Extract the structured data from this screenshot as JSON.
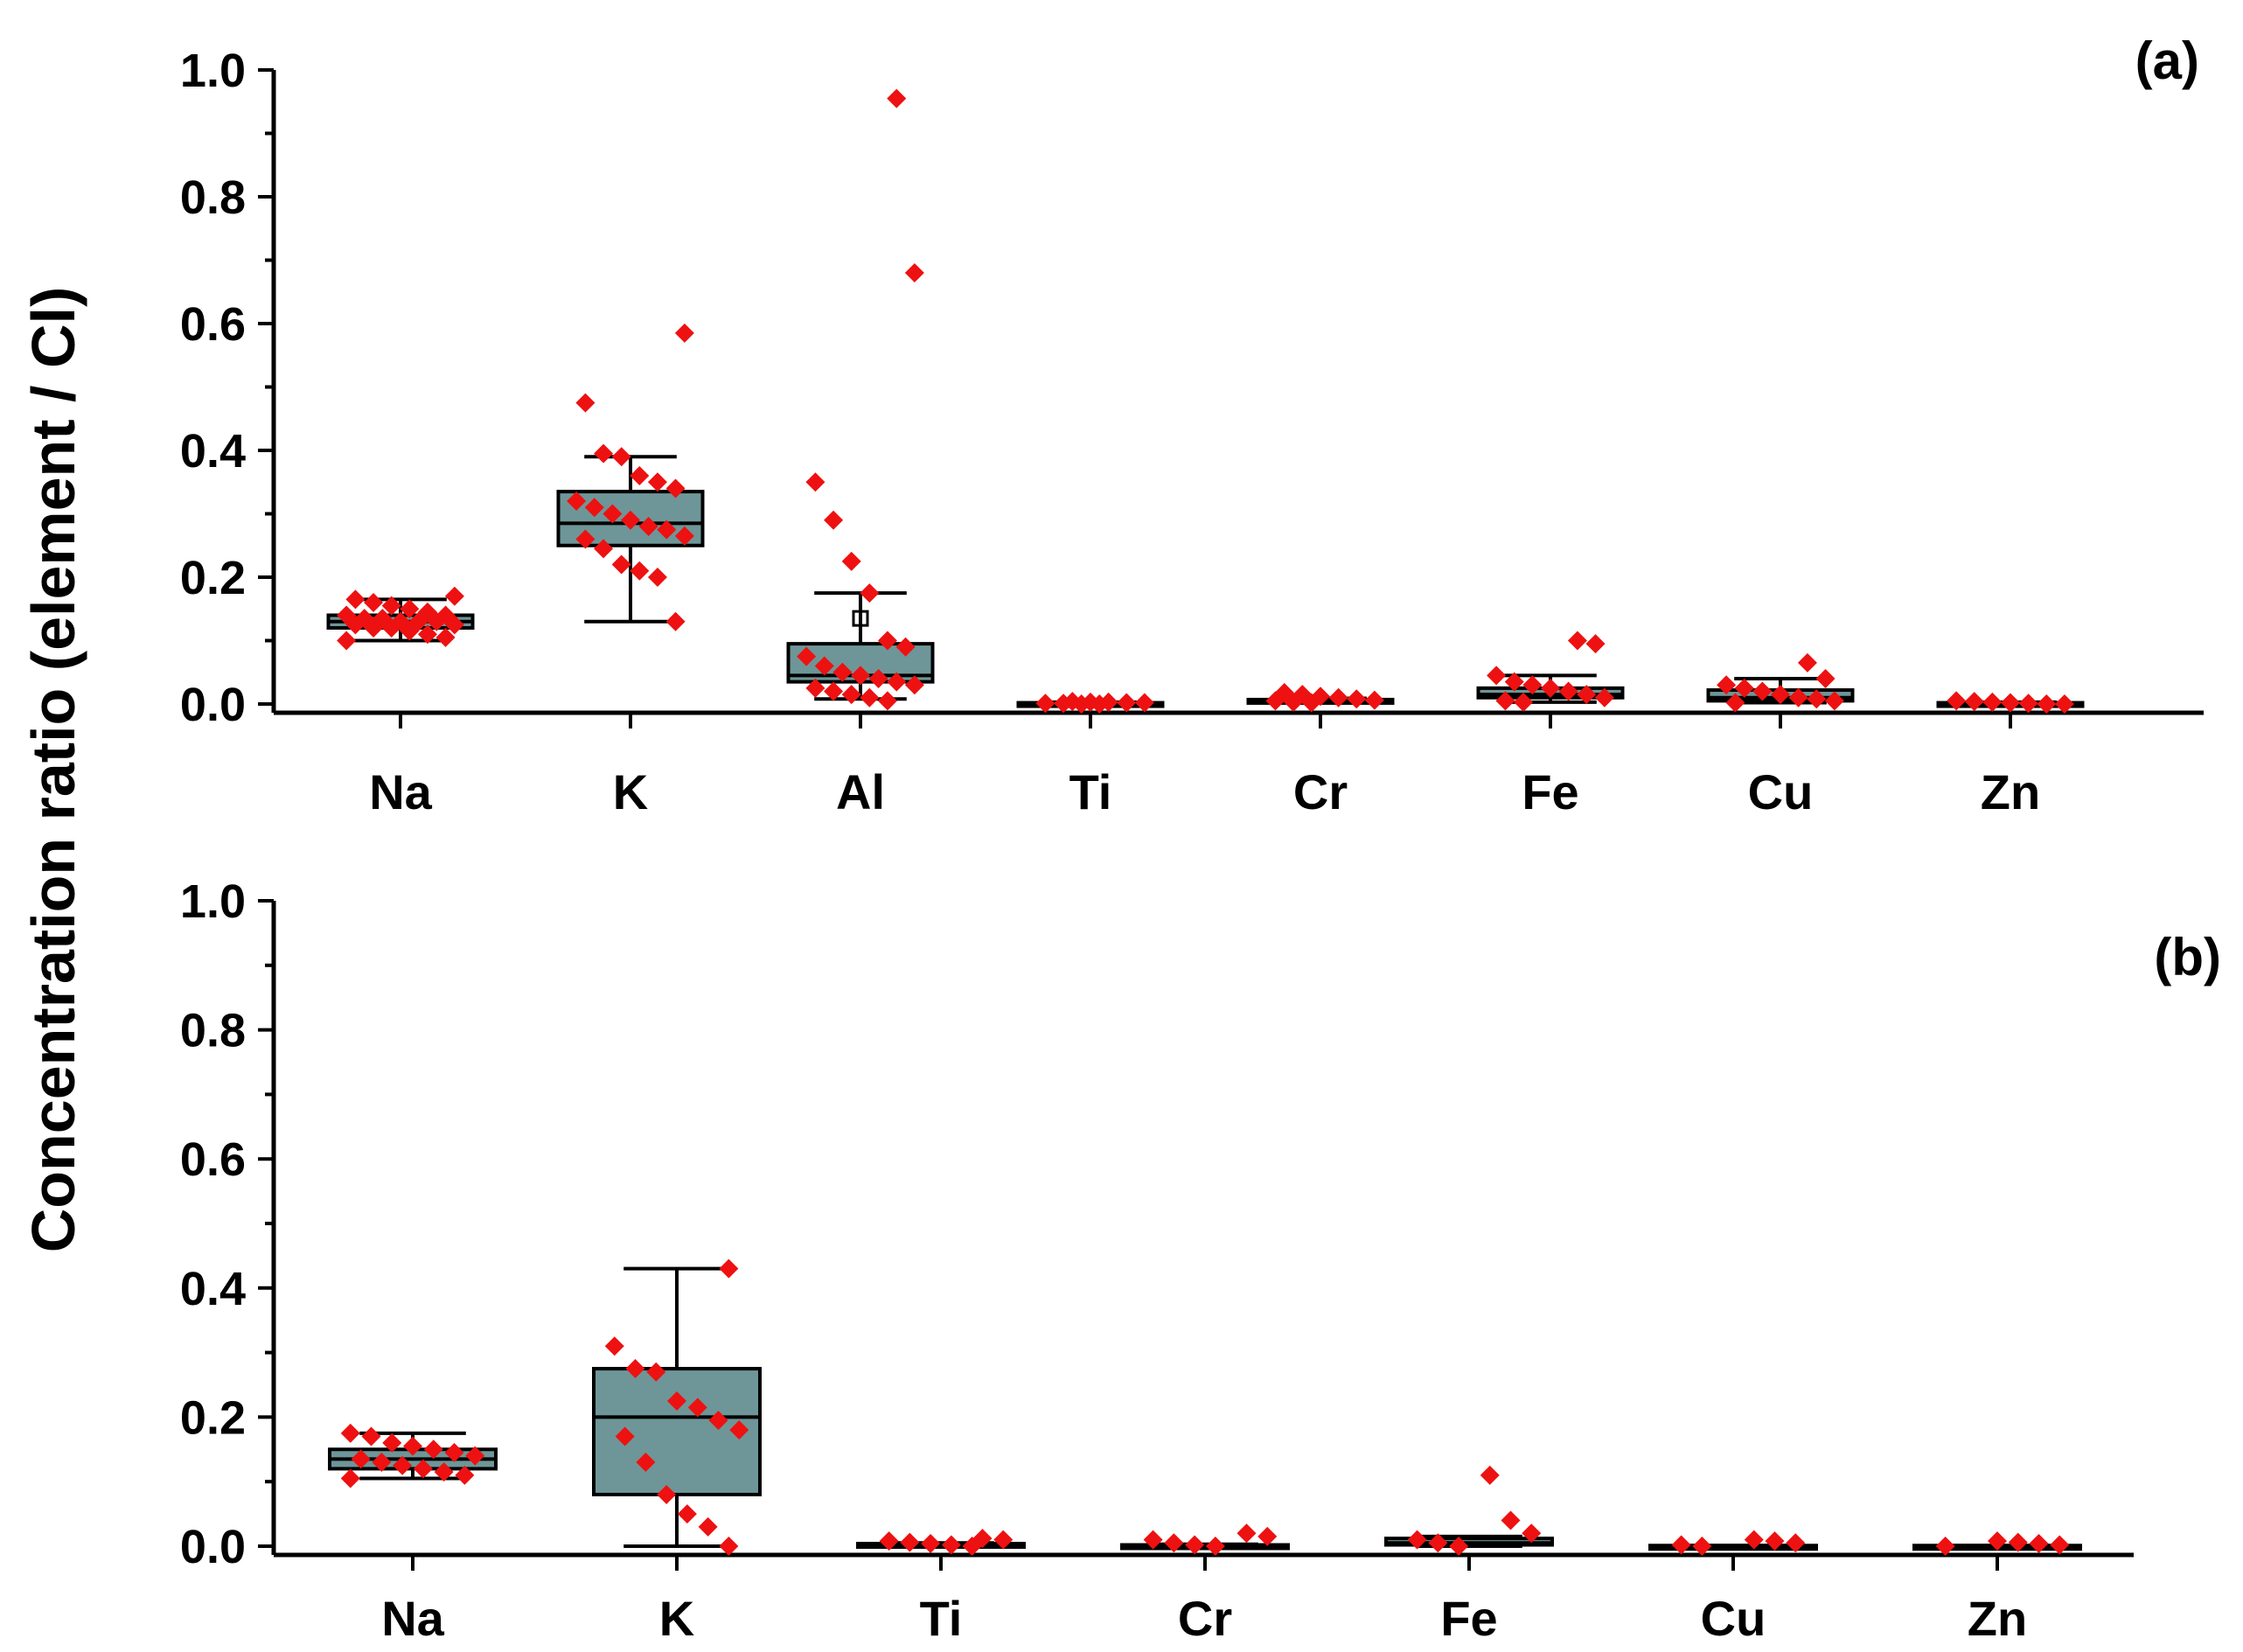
{
  "figure": {
    "ylabel": "Concentration ratio (element / Cl)",
    "box_color": "#6e9698",
    "point_color": "#ee1111"
  },
  "chart_data": [
    {
      "type": "box",
      "panel_label": "(a)",
      "ylim": [
        0,
        1.0
      ],
      "yticks": [
        "0.0",
        "0.2",
        "0.4",
        "0.6",
        "0.8",
        "1.0"
      ],
      "categories": [
        "Na",
        "K",
        "Al",
        "Ti",
        "Cr",
        "Fe",
        "Cu",
        "Zn"
      ],
      "boxes": [
        {
          "q1": 0.12,
          "median": 0.13,
          "q3": 0.14,
          "whisker_low": 0.1,
          "whisker_high": 0.165,
          "mean": null
        },
        {
          "q1": 0.25,
          "median": 0.285,
          "q3": 0.335,
          "whisker_low": 0.13,
          "whisker_high": 0.39,
          "mean": null
        },
        {
          "q1": 0.035,
          "median": 0.045,
          "q3": 0.095,
          "whisker_low": 0.008,
          "whisker_high": 0.175,
          "mean": 0.135
        },
        {
          "q1": 0.0,
          "median": 0.001,
          "q3": 0.002,
          "whisker_low": 0.0,
          "whisker_high": 0.003,
          "mean": null
        },
        {
          "q1": 0.003,
          "median": 0.005,
          "q3": 0.007,
          "whisker_low": 0.002,
          "whisker_high": 0.009,
          "mean": null
        },
        {
          "q1": 0.01,
          "median": 0.015,
          "q3": 0.025,
          "whisker_low": 0.003,
          "whisker_high": 0.045,
          "mean": null
        },
        {
          "q1": 0.005,
          "median": 0.01,
          "q3": 0.022,
          "whisker_low": 0.002,
          "whisker_high": 0.04,
          "mean": null
        },
        {
          "q1": 0.0,
          "median": 0.001,
          "q3": 0.002,
          "whisker_low": 0.0,
          "whisker_high": 0.003,
          "mean": null
        }
      ],
      "points": [
        [
          0.1,
          0.105,
          0.11,
          0.115,
          0.12,
          0.12,
          0.125,
          0.125,
          0.13,
          0.13,
          0.13,
          0.135,
          0.135,
          0.14,
          0.14,
          0.145,
          0.15,
          0.155,
          0.16,
          0.165,
          0.17
        ],
        [
          0.13,
          0.2,
          0.21,
          0.22,
          0.245,
          0.26,
          0.265,
          0.275,
          0.28,
          0.29,
          0.3,
          0.31,
          0.32,
          0.34,
          0.35,
          0.36,
          0.39,
          0.395,
          0.475,
          0.585
        ],
        [
          0.005,
          0.01,
          0.015,
          0.02,
          0.025,
          0.03,
          0.035,
          0.04,
          0.045,
          0.05,
          0.06,
          0.075,
          0.09,
          0.1,
          0.175,
          0.225,
          0.29,
          0.35,
          0.68,
          0.955
        ],
        [
          0.0,
          0.0,
          0.001,
          0.001,
          0.002,
          0.002,
          0.003,
          0.003,
          0.004
        ],
        [
          0.002,
          0.003,
          0.005,
          0.006,
          0.008,
          0.01,
          0.012,
          0.015,
          0.018
        ],
        [
          0.003,
          0.005,
          0.01,
          0.015,
          0.02,
          0.025,
          0.03,
          0.035,
          0.045,
          0.095,
          0.1
        ],
        [
          0.002,
          0.005,
          0.008,
          0.01,
          0.015,
          0.02,
          0.025,
          0.03,
          0.04,
          0.065
        ],
        [
          0.0,
          0.0,
          0.001,
          0.002,
          0.003,
          0.004,
          0.005
        ]
      ]
    },
    {
      "type": "box",
      "panel_label": "(b)",
      "ylim": [
        0,
        1.0
      ],
      "yticks": [
        "0.0",
        "0.2",
        "0.4",
        "0.6",
        "0.8",
        "1.0"
      ],
      "categories": [
        "Na",
        "K",
        "Ti",
        "Cr",
        "Fe",
        "Cu",
        "Zn"
      ],
      "boxes": [
        {
          "q1": 0.12,
          "median": 0.135,
          "q3": 0.15,
          "whisker_low": 0.105,
          "whisker_high": 0.175,
          "mean": null
        },
        {
          "q1": 0.08,
          "median": 0.2,
          "q3": 0.275,
          "whisker_low": 0.0,
          "whisker_high": 0.43,
          "mean": null
        },
        {
          "q1": 0.0,
          "median": 0.002,
          "q3": 0.004,
          "whisker_low": 0.0,
          "whisker_high": 0.005,
          "mean": null
        },
        {
          "q1": 0.0,
          "median": 0.001,
          "q3": 0.002,
          "whisker_low": 0.0,
          "whisker_high": 0.003,
          "mean": null
        },
        {
          "q1": 0.002,
          "median": 0.005,
          "q3": 0.012,
          "whisker_low": 0.0,
          "whisker_high": 0.015,
          "mean": null
        },
        {
          "q1": 0.0,
          "median": 0.0,
          "q3": 0.001,
          "whisker_low": 0.0,
          "whisker_high": 0.001,
          "mean": null
        },
        {
          "q1": 0.0,
          "median": 0.0,
          "q3": 0.001,
          "whisker_low": 0.0,
          "whisker_high": 0.001,
          "mean": null
        }
      ],
      "points": [
        [
          0.105,
          0.11,
          0.115,
          0.12,
          0.125,
          0.13,
          0.135,
          0.14,
          0.145,
          0.15,
          0.155,
          0.16,
          0.17,
          0.175
        ],
        [
          0.0,
          0.03,
          0.05,
          0.08,
          0.13,
          0.17,
          0.18,
          0.195,
          0.215,
          0.225,
          0.27,
          0.275,
          0.31,
          0.43
        ],
        [
          0.0,
          0.002,
          0.004,
          0.006,
          0.008,
          0.01,
          0.012
        ],
        [
          0.0,
          0.002,
          0.005,
          0.01,
          0.015,
          0.02
        ],
        [
          0.0,
          0.005,
          0.01,
          0.02,
          0.04,
          0.11
        ],
        [
          0.0,
          0.002,
          0.005,
          0.008,
          0.01
        ],
        [
          0.0,
          0.002,
          0.004,
          0.006,
          0.008
        ]
      ]
    }
  ]
}
